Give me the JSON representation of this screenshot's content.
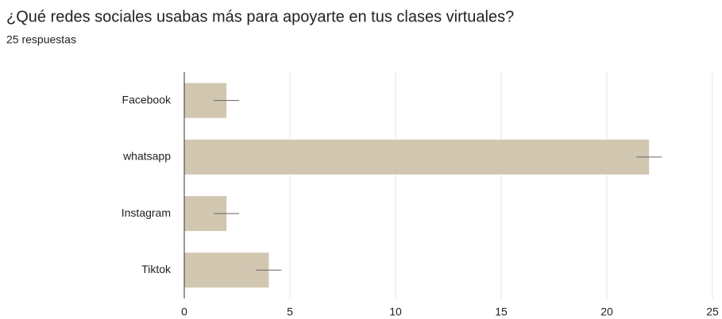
{
  "chart_data": {
    "type": "bar",
    "orientation": "horizontal",
    "title": "¿Qué redes sociales usabas más para apoyarte en tus clases virtuales?",
    "subtitle": "25 respuestas",
    "categories": [
      "Facebook",
      "whatsapp",
      "Instagram",
      "Tiktok"
    ],
    "values": [
      2,
      22,
      2,
      4
    ],
    "errors": [
      0.6,
      0.6,
      0.6,
      0.6
    ],
    "color": "#d1c7b1",
    "error_color": "#666666",
    "xlim": [
      0,
      25
    ],
    "xticks": [
      0,
      5,
      10,
      15,
      20,
      25
    ],
    "grid": true
  }
}
